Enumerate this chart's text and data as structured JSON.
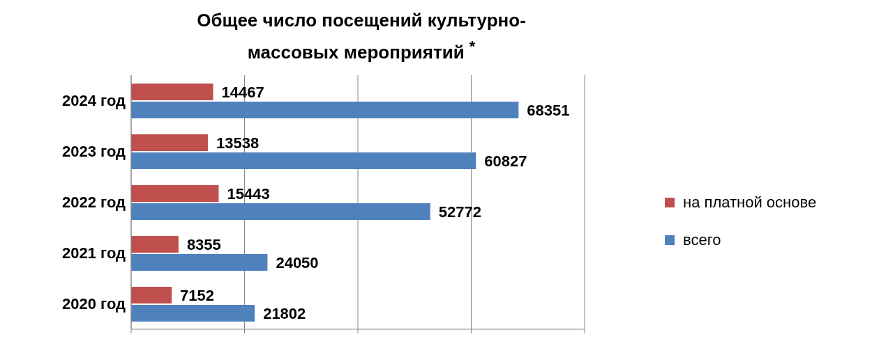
{
  "chart_data": {
    "type": "bar",
    "orientation": "horizontal",
    "title": "Общее число посещений культурно-массовых мероприятий $^{*}$",
    "categories": [
      "2024 год",
      "2023 год",
      "2022 год",
      "2021 год",
      "2020 год"
    ],
    "series": [
      {
        "name": "на платной основе",
        "color": "#c0504d",
        "values": [
          14467,
          13538,
          15443,
          8355,
          7152
        ]
      },
      {
        "name": "всего",
        "color": "#4f81bd",
        "values": [
          68351,
          60827,
          52772,
          24050,
          21802
        ]
      }
    ],
    "xlim": [
      0,
      80000
    ],
    "xticks": [
      {
        "value": 0,
        "label": null
      },
      {
        "value": 20000,
        "label": null
      },
      {
        "value": 40000,
        "label": null
      },
      {
        "value": 60000,
        "label": null
      },
      {
        "value": 80000,
        "label": null
      }
    ],
    "tick_labels": "y",
    "grid": "x",
    "legend": "right",
    "data_labels": true
  }
}
